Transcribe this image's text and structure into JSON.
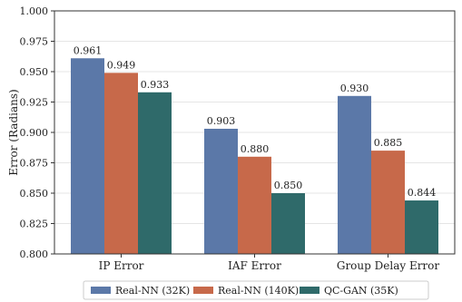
{
  "chart_data": {
    "type": "bar",
    "ylabel": "Error (Radians)",
    "xlabel": "",
    "categories": [
      "IP Error",
      "IAF Error",
      "Group Delay Error"
    ],
    "ylim": [
      0.8,
      1.0
    ],
    "yticks": [
      "0.800",
      "0.825",
      "0.850",
      "0.875",
      "0.900",
      "0.925",
      "0.950",
      "0.975",
      "1.000"
    ],
    "grid": true,
    "legend_position": "bottom",
    "series": [
      {
        "name": "Real-NN (32K)",
        "color": "#5b78a8",
        "values": [
          0.961,
          0.903,
          0.93
        ],
        "labels": [
          "0.961",
          "0.903",
          "0.930"
        ]
      },
      {
        "name": "Real-NN (140K)",
        "color": "#c7694a",
        "values": [
          0.949,
          0.88,
          0.885
        ],
        "labels": [
          "0.949",
          "0.880",
          "0.885"
        ]
      },
      {
        "name": "QC-GAN (35K)",
        "color": "#2f6a6a",
        "values": [
          0.933,
          0.85,
          0.844
        ],
        "labels": [
          "0.933",
          "0.850",
          "0.844"
        ]
      }
    ]
  }
}
